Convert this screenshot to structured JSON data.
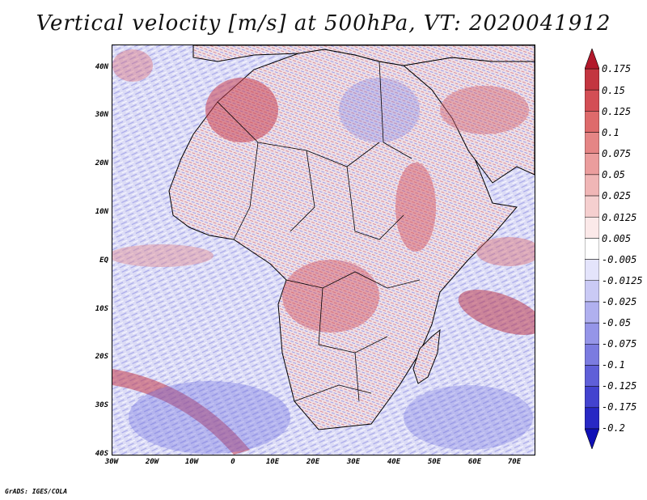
{
  "title": "Vertical velocity [m/s] at 500hPa, VT: 2020041912",
  "credit": "GrADS: IGES/COLA",
  "y_axis_labels": [
    "40N",
    "30N",
    "20N",
    "10N",
    "EQ",
    "10S",
    "20S",
    "30S",
    "40S"
  ],
  "x_axis_labels": [
    "30W",
    "20W",
    "10W",
    "0",
    "10E",
    "20E",
    "30E",
    "40E",
    "50E",
    "60E",
    "70E"
  ],
  "colorbar": {
    "labels": [
      "0.175",
      "0.15",
      "0.125",
      "0.1",
      "0.075",
      "0.05",
      "0.025",
      "0.0125",
      "0.005",
      "-0.005",
      "-0.0125",
      "-0.025",
      "-0.05",
      "-0.075",
      "-0.1",
      "-0.125",
      "-0.175",
      "-0.2"
    ],
    "colors": [
      "#b2182b",
      "#c33540",
      "#d34e55",
      "#de6a6b",
      "#e58585",
      "#eb9d9d",
      "#f0b6b6",
      "#f5cfcf",
      "#fbe9e9",
      "#ffffff",
      "#e4e4fb",
      "#cacaf5",
      "#b0b0ef",
      "#9595e8",
      "#7b7be0",
      "#5f5fd8",
      "#4343cf",
      "#2828c4",
      "#1010b6"
    ]
  },
  "map": {
    "extent_lon": [
      -30,
      75
    ],
    "extent_lat": [
      -40,
      45
    ],
    "ocean_tint": "#dcdcf6",
    "land_tint": "#f3e2e6"
  }
}
